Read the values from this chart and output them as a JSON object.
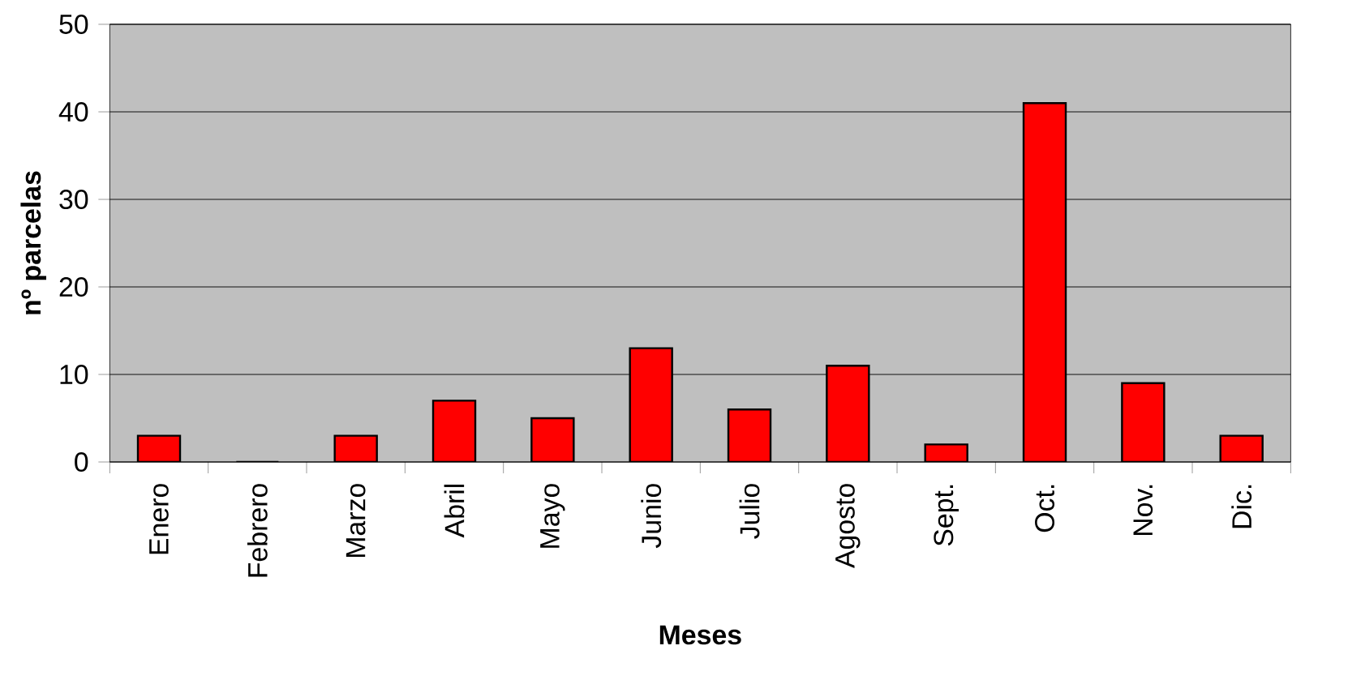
{
  "chart_data": {
    "type": "bar",
    "xlabel": "Meses",
    "ylabel": "nº parcelas",
    "categories": [
      "Enero",
      "Febrero",
      "Marzo",
      "Abril",
      "Mayo",
      "Junio",
      "Julio",
      "Agosto",
      "Sept.",
      "Oct.",
      "Nov.",
      "Dic."
    ],
    "values": [
      3,
      0,
      3,
      7,
      5,
      13,
      6,
      11,
      2,
      41,
      9,
      3
    ],
    "color": "#ff0000",
    "ylim": [
      0,
      50
    ],
    "yticks": [
      0,
      10,
      20,
      30,
      40,
      50
    ],
    "grid": "y"
  }
}
